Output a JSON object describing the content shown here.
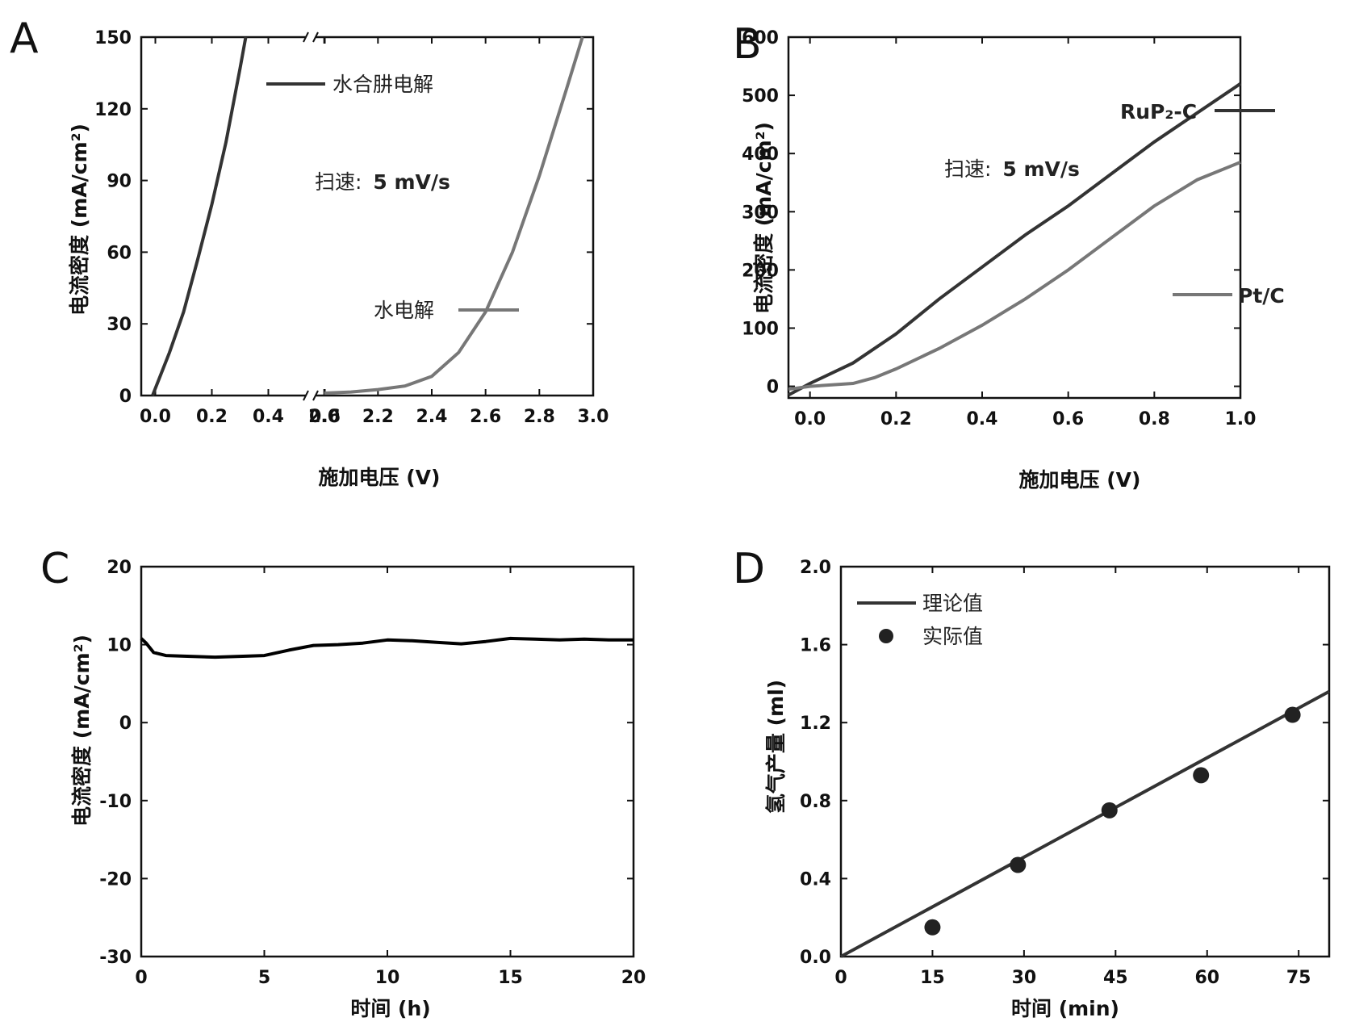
{
  "chart_data": [
    {
      "panel": "A",
      "type": "line",
      "xlabel": "施加电压 (V)",
      "ylabel": "电流密度 (mA/cm²)",
      "broken_x_axis": true,
      "x_segments": [
        [
          -0.05,
          0.55
        ],
        [
          1.95,
          3.0
        ]
      ],
      "ylim": [
        0,
        150
      ],
      "x_ticks": [
        "0.0",
        "0.2",
        "0.4",
        "0.6",
        "2.0",
        "2.2",
        "2.4",
        "2.6",
        "2.8",
        "3.0"
      ],
      "y_ticks": [
        "0",
        "30",
        "60",
        "90",
        "120",
        "150"
      ],
      "annotation": {
        "prefix": "扫速:",
        "value": "5 mV/s"
      },
      "series": [
        {
          "name": "水合肼电解",
          "color": "#333333",
          "x": [
            -0.01,
            0.05,
            0.1,
            0.15,
            0.2,
            0.25,
            0.3,
            0.32
          ],
          "y": [
            0,
            18,
            35,
            57,
            80,
            106,
            137,
            150
          ]
        },
        {
          "name": "水电解",
          "color": "#777777",
          "x": [
            2.0,
            2.1,
            2.2,
            2.3,
            2.4,
            2.5,
            2.6,
            2.7,
            2.8,
            2.9,
            2.96
          ],
          "y": [
            1,
            1.5,
            2.5,
            4,
            8,
            18,
            35,
            60,
            92,
            128,
            150
          ]
        }
      ]
    },
    {
      "panel": "B",
      "type": "line",
      "xlabel": "施加电压 (V)",
      "ylabel": "电流密度 (mA/cm²)",
      "xlim": [
        -0.05,
        1.0
      ],
      "ylim": [
        -20,
        600
      ],
      "x_ticks": [
        "0.0",
        "0.2",
        "0.4",
        "0.6",
        "0.8",
        "1.0"
      ],
      "y_ticks": [
        "0",
        "100",
        "200",
        "300",
        "400",
        "500",
        "600"
      ],
      "annotation": {
        "prefix": "扫速:",
        "value": "5 mV/s"
      },
      "series": [
        {
          "name": "RuP₂-C",
          "color": "#333333",
          "x": [
            -0.05,
            0.0,
            0.1,
            0.2,
            0.3,
            0.4,
            0.5,
            0.6,
            0.7,
            0.8,
            0.9,
            1.0
          ],
          "y": [
            -15,
            5,
            40,
            90,
            150,
            205,
            260,
            310,
            365,
            420,
            470,
            520
          ]
        },
        {
          "name": "Pt/C",
          "color": "#777777",
          "x": [
            -0.05,
            0.0,
            0.1,
            0.15,
            0.2,
            0.3,
            0.4,
            0.5,
            0.6,
            0.7,
            0.8,
            0.9,
            1.0
          ],
          "y": [
            -5,
            0,
            5,
            15,
            30,
            65,
            105,
            150,
            200,
            255,
            310,
            355,
            385
          ]
        }
      ]
    },
    {
      "panel": "C",
      "type": "line",
      "xlabel": "时间 (h)",
      "ylabel": "电流密度 (mA/cm²)",
      "xlim": [
        0,
        20
      ],
      "ylim": [
        -30,
        20
      ],
      "x_ticks": [
        "0",
        "5",
        "10",
        "15",
        "20"
      ],
      "y_ticks": [
        "-30",
        "-20",
        "-10",
        "0",
        "10",
        "20"
      ],
      "series": [
        {
          "name": "",
          "color": "#000000",
          "x": [
            0,
            0.2,
            0.5,
            1,
            2,
            3,
            4,
            5,
            6,
            7,
            8,
            9,
            10,
            11,
            12,
            13,
            14,
            15,
            16,
            17,
            18,
            19,
            20
          ],
          "y": [
            10.8,
            10.2,
            9.0,
            8.6,
            8.5,
            8.4,
            8.5,
            8.6,
            9.3,
            9.9,
            10.0,
            10.2,
            10.6,
            10.5,
            10.3,
            10.1,
            10.4,
            10.8,
            10.7,
            10.6,
            10.7,
            10.6,
            10.6
          ]
        }
      ]
    },
    {
      "panel": "D",
      "type": "scatter",
      "xlabel": "时间 (min)",
      "ylabel": "氢气产量 (ml)",
      "xlim": [
        0,
        80
      ],
      "ylim": [
        0,
        2.0
      ],
      "x_ticks": [
        "0",
        "15",
        "30",
        "45",
        "60",
        "75"
      ],
      "y_ticks": [
        "0.0",
        "0.4",
        "0.8",
        "1.2",
        "1.6",
        "2.0"
      ],
      "legend_position": "top-left",
      "series": [
        {
          "name": "理论值",
          "type": "line",
          "color": "#333333",
          "x": [
            0,
            80
          ],
          "y": [
            0,
            1.36
          ]
        },
        {
          "name": "实际值",
          "type": "scatter",
          "color": "#222222",
          "x": [
            15,
            29,
            44,
            59,
            74
          ],
          "y": [
            0.15,
            0.47,
            0.75,
            0.93,
            1.24
          ]
        }
      ]
    }
  ],
  "panels": {
    "A": {
      "label": "A"
    },
    "B": {
      "label": "B"
    },
    "C": {
      "label": "C"
    },
    "D": {
      "label": "D"
    }
  }
}
